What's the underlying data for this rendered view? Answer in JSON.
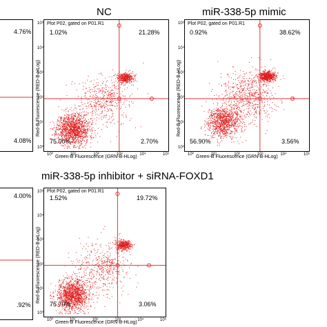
{
  "colors": {
    "dots": "#e02020",
    "gate": "#e03030",
    "gate_marker": "#e03030",
    "frame": "#000000"
  },
  "chart_data": [
    {
      "type": "scatter",
      "title": "",
      "plot_title": "",
      "xlabel": "",
      "ylabel": "",
      "quadrants": {
        "ul": "",
        "ur": "",
        "ll": "4.08%",
        "lr": ""
      },
      "top_right_value": "4.76%",
      "gate": "",
      "x_ticks": [],
      "y_ticks": [],
      "clusters": [
        {
          "x": 10.0,
          "y": 14.0,
          "spread": 0.5,
          "count": 0
        }
      ]
    },
    {
      "type": "scatter",
      "title": "NC",
      "plot_title": "Plot P02, gated on P01.R1",
      "xlabel": "Green-B Fluorescence (GRN-B-HLog)",
      "ylabel": "Red-B Fluorescence (RED-B-HLog)",
      "quadrants": {
        "ul": "1.02%",
        "ur": "21.28%",
        "ll": "75.00%",
        "lr": "2.70%"
      },
      "gate": "R2",
      "x_ticks": [
        "10⁰",
        "10¹",
        "10²",
        "10³",
        "10⁴",
        "10⁵"
      ],
      "y_ticks": [
        "10⁰",
        "10¹",
        "10²",
        "10³",
        "10⁴",
        "10⁵"
      ],
      "xlim": [
        1,
        100000
      ],
      "ylim": [
        1,
        100000
      ],
      "xscale": "log",
      "yscale": "log",
      "gate_crosspoint": [
        1000,
        100
      ],
      "clusters": [
        {
          "x": 10,
          "y": 6,
          "spread": 0.35,
          "count": 1400
        },
        {
          "x": 1800,
          "y": 700,
          "spread": 0.18,
          "count": 450
        },
        {
          "x": 200,
          "y": 80,
          "spread": 0.6,
          "count": 450
        }
      ]
    },
    {
      "type": "scatter",
      "title": "miR-338-5p mimic",
      "plot_title": "Plot P02, gated on P01.R1",
      "xlabel": "Green-B Fluorescence (GRN-B-HLog)",
      "ylabel": "Red-B Fluorescence (RED-B-HLog)",
      "quadrants": {
        "ul": "0.92%",
        "ur": "38.62%",
        "ll": "56.90%",
        "lr": "3.56%"
      },
      "gate": "R2",
      "x_ticks": [
        "10⁰",
        "10¹",
        "10²",
        "10³",
        "10⁴",
        "10⁵"
      ],
      "y_ticks": [
        "10⁰",
        "10¹",
        "10²",
        "10³",
        "10⁴",
        "10⁵"
      ],
      "xlim": [
        1,
        100000
      ],
      "ylim": [
        1,
        100000
      ],
      "xscale": "log",
      "yscale": "log",
      "gate_crosspoint": [
        1000,
        100
      ],
      "clusters": [
        {
          "x": 25,
          "y": 12,
          "spread": 0.35,
          "count": 1000
        },
        {
          "x": 2000,
          "y": 800,
          "spread": 0.18,
          "count": 700
        },
        {
          "x": 250,
          "y": 120,
          "spread": 0.6,
          "count": 650
        }
      ]
    },
    {
      "type": "scatter",
      "title": "",
      "plot_title": "",
      "xlabel": "",
      "ylabel": "",
      "quadrants": {
        "ul": "",
        "ur": "",
        "ll": ".92%",
        "lr": ""
      },
      "top_right_value": "4.00%",
      "gate": "",
      "x_ticks": [],
      "y_ticks": [],
      "clusters": []
    },
    {
      "type": "scatter",
      "title": "miR-338-5p inhibitor + siRNA-FOXD1",
      "plot_title": "Plot P02, gated on P01.R1",
      "xlabel": "Green-B Fluorescence (GRN-B-HLog)",
      "ylabel": "Red-B Fluorescence (RED-B-HLog)",
      "quadrants": {
        "ul": "1.52%",
        "ur": "19.72%",
        "ll": "75.70%",
        "lr": "3.06%"
      },
      "gate": "R2",
      "x_ticks": [
        "10⁰",
        "10¹",
        "10²",
        "10³",
        "10⁴",
        "10⁵"
      ],
      "y_ticks": [
        "10⁰",
        "10¹",
        "10²",
        "10³",
        "10⁴",
        "10⁵"
      ],
      "xlim": [
        1,
        100000
      ],
      "ylim": [
        1,
        100000
      ],
      "xscale": "log",
      "yscale": "log",
      "gate_crosspoint": [
        1000,
        100
      ],
      "clusters": [
        {
          "x": 10,
          "y": 6,
          "spread": 0.35,
          "count": 1400
        },
        {
          "x": 1800,
          "y": 700,
          "spread": 0.18,
          "count": 450
        },
        {
          "x": 200,
          "y": 80,
          "spread": 0.6,
          "count": 450
        }
      ]
    }
  ]
}
